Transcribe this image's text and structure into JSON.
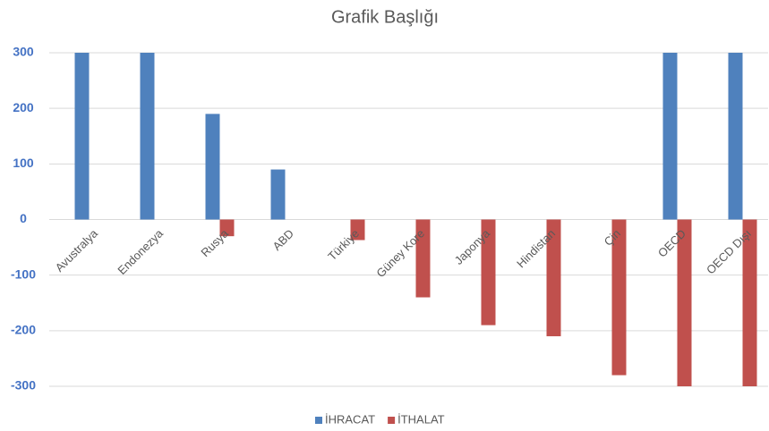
{
  "chart_data": {
    "type": "bar",
    "title": "Grafik Başlığı",
    "categories": [
      "Avustralya",
      "Endonezya",
      "Rusya",
      "ABD",
      "Türkiye",
      "Güney Kore",
      "Japonya",
      "Hindistan",
      "Çin",
      "OECD",
      "OECD Dışı"
    ],
    "series": [
      {
        "name": "İHRACAT",
        "color": "#4f81bd",
        "values": [
          300,
          300,
          190,
          90,
          0,
          0,
          0,
          0,
          0,
          300,
          300
        ]
      },
      {
        "name": "İTHALAT",
        "color": "#c0504d",
        "values": [
          0,
          0,
          -30,
          0,
          -37,
          -140,
          -190,
          -210,
          -280,
          -300,
          -300
        ]
      }
    ],
    "ylim": [
      -300,
      300
    ],
    "yticks": [
      -300,
      -200,
      -100,
      0,
      100,
      200,
      300
    ],
    "grid": true,
    "legend": "bottom"
  }
}
